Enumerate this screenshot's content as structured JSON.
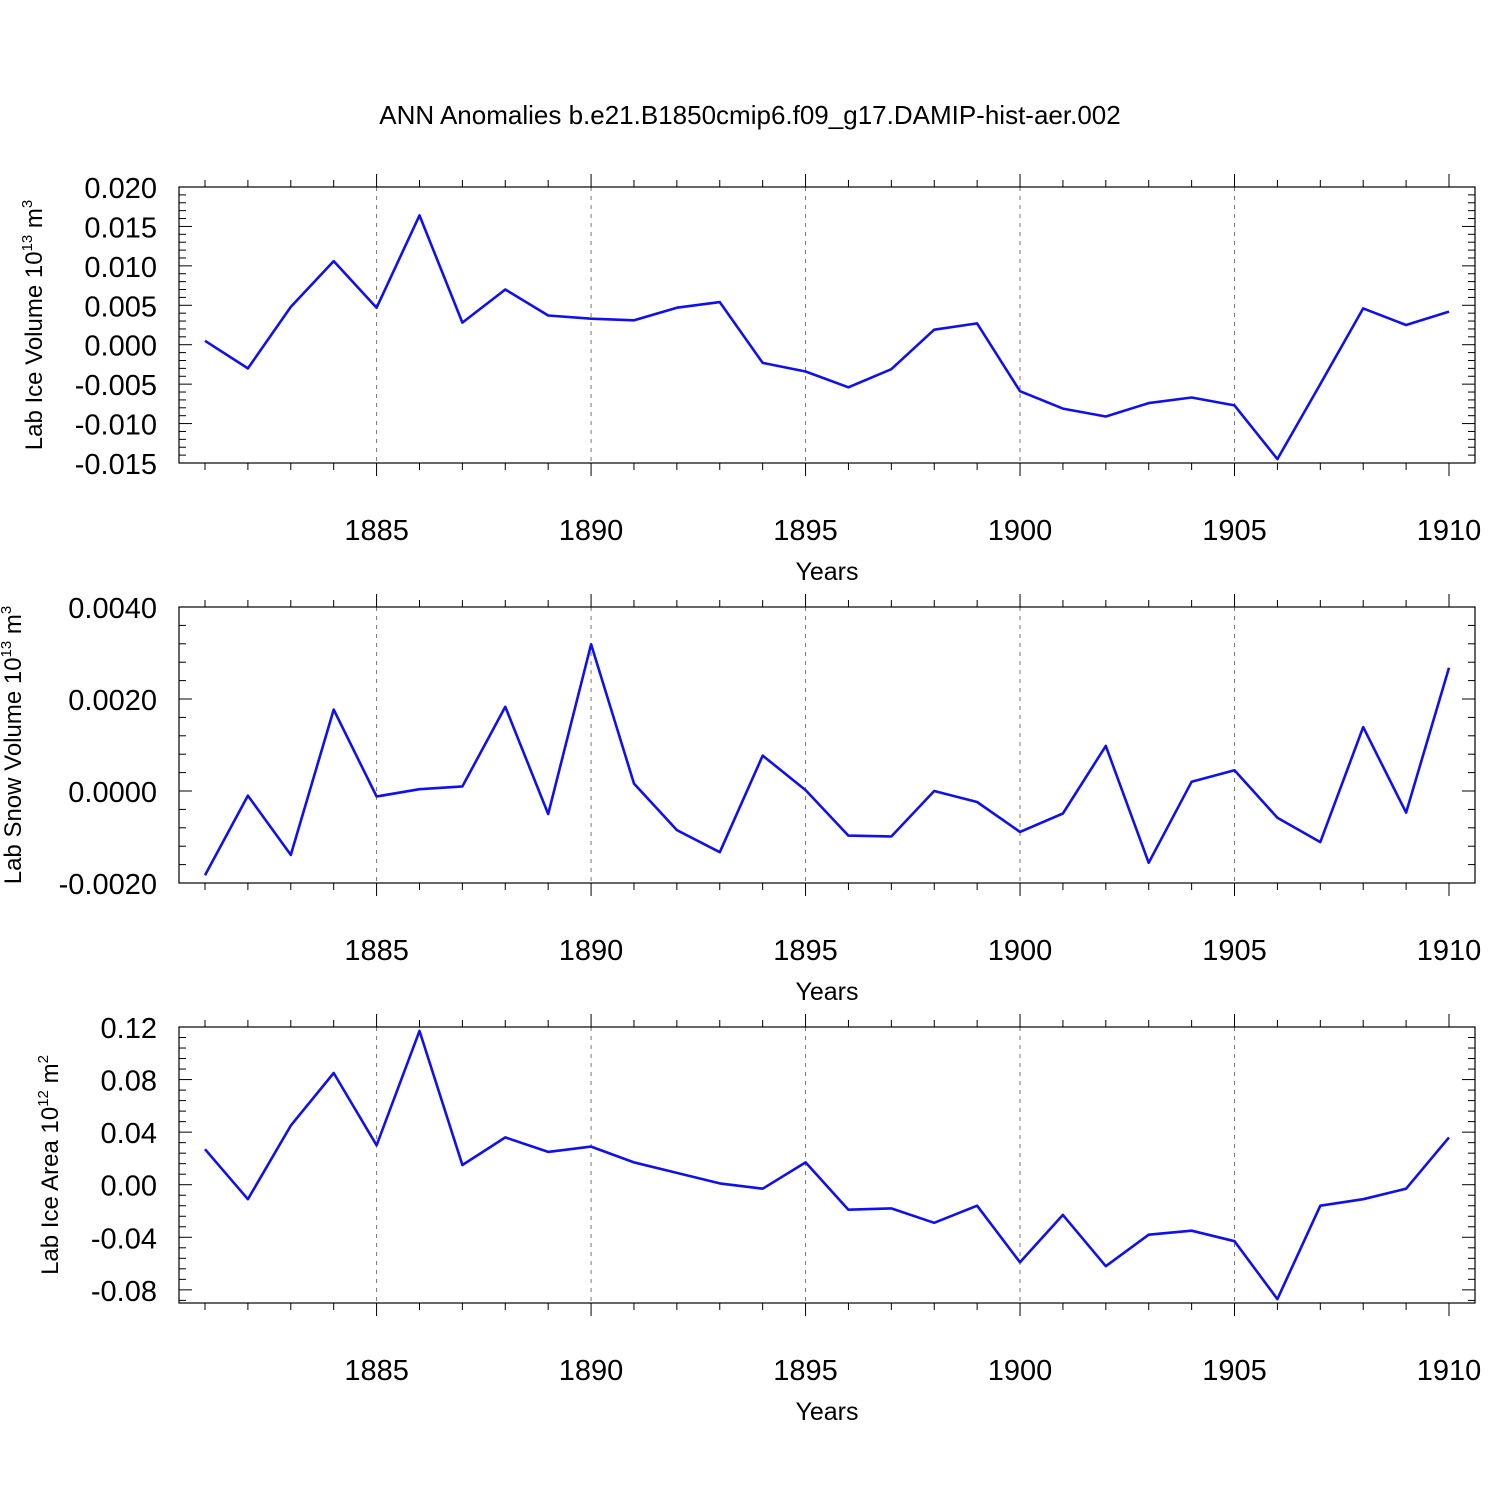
{
  "title": "ANN Anomalies b.e21.B1850cmip6.f09_g17.DAMIP-hist-aer.002",
  "line_color": "#1010ee",
  "chart_data": [
    {
      "type": "line",
      "ylabel": {
        "main": "Lab Ice Volume 10",
        "exp": "13",
        "unit": " m",
        "unit_exp": "3"
      },
      "xlabel": "Years",
      "xlim": [
        1881,
        1910
      ],
      "ylim": [
        -0.015,
        0.02
      ],
      "xticks": [
        1885,
        1890,
        1895,
        1900,
        1905,
        1910
      ],
      "yticks": [
        -0.015,
        -0.01,
        -0.005,
        0.0,
        0.005,
        0.01,
        0.015,
        0.02
      ],
      "ytick_labels": [
        "-0.015",
        "-0.010",
        "-0.005",
        "0.000",
        "0.005",
        "0.010",
        "0.015",
        "0.020"
      ],
      "grid": "vertical dashed at major x ticks",
      "x": [
        1881,
        1882,
        1883,
        1884,
        1885,
        1886,
        1887,
        1888,
        1889,
        1890,
        1891,
        1892,
        1893,
        1894,
        1895,
        1896,
        1897,
        1898,
        1899,
        1900,
        1901,
        1902,
        1903,
        1904,
        1905,
        1906,
        1907,
        1908,
        1909,
        1910
      ],
      "values": [
        0.0005,
        -0.003,
        0.0048,
        0.0106,
        0.0047,
        0.0164,
        0.0028,
        0.007,
        0.0037,
        0.0033,
        0.0031,
        0.0047,
        0.0054,
        -0.0023,
        -0.0034,
        -0.0054,
        -0.0031,
        0.0019,
        0.0027,
        -0.0059,
        -0.0081,
        -0.0091,
        -0.0074,
        -0.0067,
        -0.0077,
        -0.0145,
        -0.005,
        0.0046,
        0.0025,
        0.0042
      ]
    },
    {
      "type": "line",
      "ylabel": {
        "main": "Lab Snow Volume 10",
        "exp": "13",
        "unit": " m",
        "unit_exp": "3"
      },
      "xlabel": "Years",
      "xlim": [
        1881,
        1910
      ],
      "ylim": [
        -0.002,
        0.004
      ],
      "xticks": [
        1885,
        1890,
        1895,
        1900,
        1905,
        1910
      ],
      "yticks": [
        -0.002,
        0.0,
        0.002,
        0.004
      ],
      "ytick_labels": [
        "-0.0020",
        "0.0000",
        "0.0020",
        "0.0040"
      ],
      "grid": "vertical dashed at major x ticks",
      "x": [
        1881,
        1882,
        1883,
        1884,
        1885,
        1886,
        1887,
        1888,
        1889,
        1890,
        1891,
        1892,
        1893,
        1894,
        1895,
        1896,
        1897,
        1898,
        1899,
        1900,
        1901,
        1902,
        1903,
        1904,
        1905,
        1906,
        1907,
        1908,
        1909,
        1910
      ],
      "values": [
        -0.00183,
        -0.0001,
        -0.00139,
        0.00177,
        -0.00012,
        4e-05,
        0.0001,
        0.00183,
        -0.0005,
        0.00319,
        0.00016,
        -0.00085,
        -0.00133,
        0.00077,
        2e-05,
        -0.00097,
        -0.00099,
        0.0,
        -0.00024,
        -0.00089,
        -0.00049,
        0.00098,
        -0.00156,
        0.0002,
        0.00045,
        -0.00058,
        -0.00111,
        0.00139,
        -0.00047,
        0.00268
      ]
    },
    {
      "type": "line",
      "ylabel": {
        "main": "Lab Ice Area 10",
        "exp": "12",
        "unit": " m",
        "unit_exp": "2"
      },
      "xlabel": "Years",
      "xlim": [
        1881,
        1910
      ],
      "ylim": [
        -0.09,
        0.12
      ],
      "xticks": [
        1885,
        1890,
        1895,
        1900,
        1905,
        1910
      ],
      "yticks": [
        -0.08,
        -0.04,
        0.0,
        0.04,
        0.08,
        0.12
      ],
      "ytick_labels": [
        "-0.08",
        "-0.04",
        "0.00",
        "0.04",
        "0.08",
        "0.12"
      ],
      "grid": "vertical dashed at major x ticks",
      "x": [
        1881,
        1882,
        1883,
        1884,
        1885,
        1886,
        1887,
        1888,
        1889,
        1890,
        1891,
        1892,
        1893,
        1894,
        1895,
        1896,
        1897,
        1898,
        1899,
        1900,
        1901,
        1902,
        1903,
        1904,
        1905,
        1906,
        1907,
        1908,
        1909,
        1910
      ],
      "values": [
        0.027,
        -0.011,
        0.045,
        0.085,
        0.03,
        0.117,
        0.015,
        0.036,
        0.025,
        0.029,
        0.017,
        0.009,
        0.001,
        -0.003,
        0.017,
        -0.019,
        -0.018,
        -0.029,
        -0.016,
        -0.059,
        -0.023,
        -0.062,
        -0.038,
        -0.035,
        -0.043,
        -0.087,
        -0.016,
        -0.011,
        -0.003,
        0.036
      ]
    }
  ]
}
